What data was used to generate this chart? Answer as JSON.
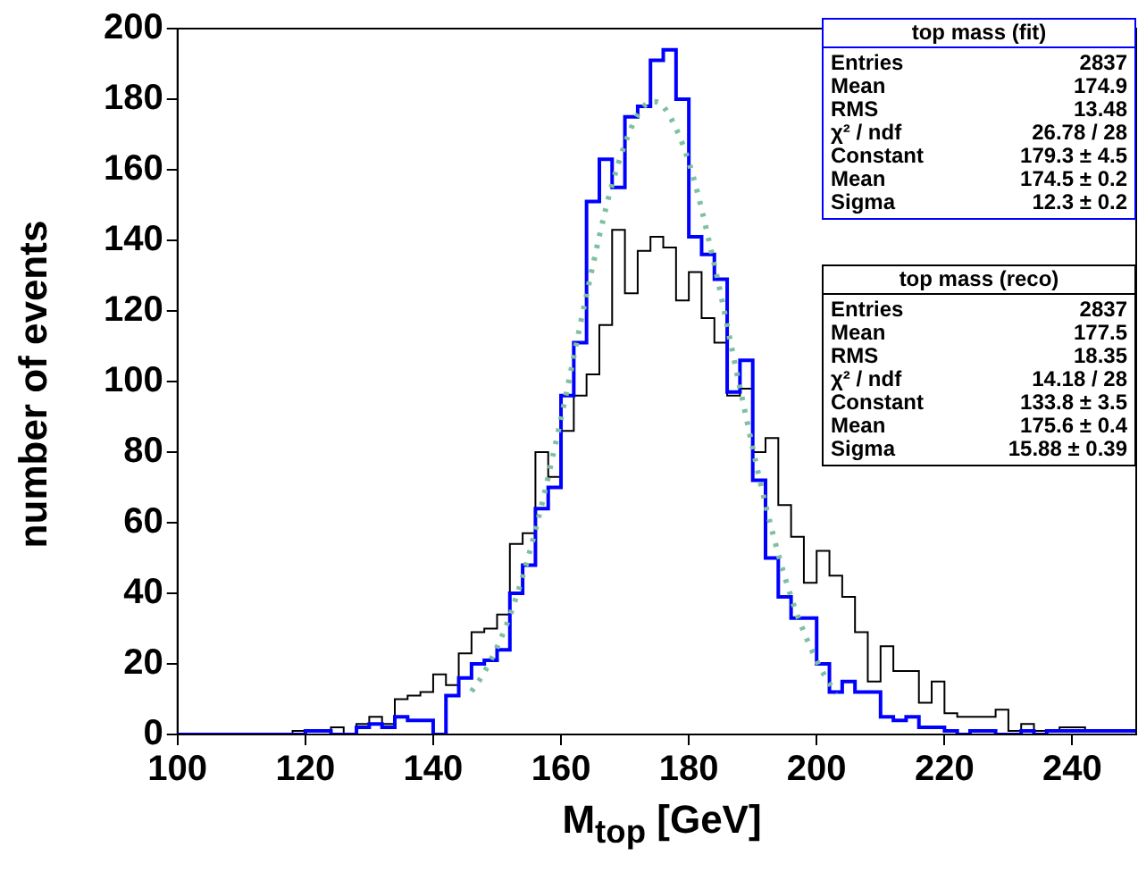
{
  "chart_data": {
    "type": "histogram",
    "xlabel": "M$_{top}$ [GeV]",
    "ylabel": "number of events",
    "bins": [
      100,
      102,
      104,
      106,
      108,
      110,
      112,
      114,
      116,
      118,
      120,
      122,
      124,
      126,
      128,
      130,
      132,
      134,
      136,
      138,
      140,
      142,
      144,
      146,
      148,
      150,
      152,
      154,
      156,
      158,
      160,
      162,
      164,
      166,
      168,
      170,
      172,
      174,
      176,
      178,
      180,
      182,
      184,
      186,
      188,
      190,
      192,
      194,
      196,
      198,
      200,
      202,
      204,
      206,
      208,
      210,
      212,
      214,
      216,
      218,
      220,
      222,
      224,
      226,
      228,
      230,
      232,
      234,
      236,
      238,
      240,
      242,
      244,
      246,
      248,
      250
    ],
    "series": [
      {
        "color": "#0000ff",
        "values": [
          0,
          0,
          0,
          0,
          0,
          0,
          0,
          0,
          0,
          0,
          1,
          1,
          0,
          0,
          2,
          3,
          2,
          5,
          4,
          4,
          0,
          11,
          16,
          20,
          21,
          24,
          40,
          48,
          64,
          70,
          96,
          111,
          151,
          163,
          155,
          175,
          178,
          191,
          194,
          180,
          141,
          136,
          129,
          97,
          106,
          72,
          50,
          39,
          33,
          33,
          20,
          12,
          15,
          12,
          12,
          5,
          4,
          5,
          2,
          2,
          1,
          0,
          1,
          1,
          0,
          0,
          1,
          0,
          1,
          1,
          1,
          1,
          1,
          1,
          1
        ]
      },
      {
        "color": "#000000",
        "values": [
          0,
          0,
          0,
          0,
          0,
          0,
          0,
          0,
          0,
          1,
          1,
          1,
          2,
          0,
          3,
          5,
          3,
          10,
          11,
          12,
          17,
          14,
          23,
          29,
          30,
          34,
          54,
          57,
          80,
          73,
          86,
          96,
          102,
          116,
          143,
          125,
          137,
          141,
          138,
          123,
          131,
          118,
          111,
          96,
          98,
          80,
          84,
          65,
          56,
          43,
          52,
          45,
          39,
          29,
          15,
          25,
          18,
          18,
          9,
          15,
          6,
          5,
          5,
          5,
          7,
          1,
          3,
          1,
          1,
          2,
          2,
          1,
          1,
          1,
          1
        ]
      },
      {
        "type": "line",
        "color": "#80c0a0",
        "line_style": "dotted",
        "x": [
          146,
          148,
          152,
          156,
          160,
          164,
          168,
          172,
          174.5,
          176,
          180,
          184,
          188,
          192,
          196,
          200,
          203
        ],
        "values": [
          12.2,
          17.6,
          33.6,
          57.9,
          89.5,
          124.6,
          155.9,
          175.6,
          179.3,
          178,
          162.2,
          133.1,
          98.2,
          65.2,
          38.9,
          20.9,
          11.5
        ]
      }
    ],
    "xlim": [
      100,
      250
    ],
    "xticks": [
      100,
      120,
      140,
      160,
      180,
      200,
      220,
      240
    ],
    "ylim": [
      0,
      200
    ],
    "yticks": [
      0,
      20,
      40,
      60,
      80,
      100,
      120,
      140,
      160,
      180,
      200
    ],
    "grid": false,
    "legend": false,
    "annotations": [
      "top mass (fit)",
      "Entries\t2837",
      "Mean\t174.9",
      "RMS\t13.48",
      "χ² / ndf\t26.78 / 28",
      "Constant\t179.3 ± 4.5",
      "Mean\t174.5 ± 0.2",
      "Sigma\t12.3 ± 0.2",
      "top mass (reco)",
      "Entries\t2837",
      "Mean\t177.5",
      "RMS\t18.35",
      "χ² / ndf\t14.18 / 28",
      "Constant\t133.8 ± 3.5",
      "Mean\t175.6 ± 0.4",
      "Sigma\t15.88 ± 0.39"
    ]
  }
}
